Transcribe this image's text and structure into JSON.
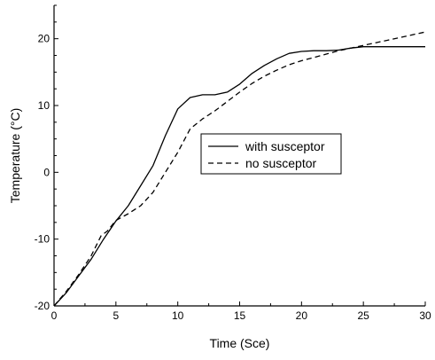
{
  "chart_data": {
    "type": "line",
    "title": "",
    "xlabel": "Time (Sce)",
    "ylabel": "Temperature (°C)",
    "xlim": [
      0,
      30
    ],
    "ylim": [
      -20,
      25
    ],
    "x_ticks": [
      0,
      5,
      10,
      15,
      20,
      25,
      30
    ],
    "y_ticks": [
      -20,
      -10,
      0,
      10,
      20
    ],
    "grid": false,
    "legend_position": "center-right",
    "series": [
      {
        "name": "with susceptor",
        "style": "solid",
        "color": "#000000",
        "points": [
          [
            0,
            -20
          ],
          [
            1,
            -18
          ],
          [
            2,
            -15.5
          ],
          [
            3,
            -13
          ],
          [
            4,
            -10
          ],
          [
            5,
            -7.3
          ],
          [
            6,
            -5
          ],
          [
            7,
            -2
          ],
          [
            8,
            1
          ],
          [
            9,
            5.5
          ],
          [
            10,
            9.5
          ],
          [
            11,
            11.2
          ],
          [
            12,
            11.6
          ],
          [
            13,
            11.6
          ],
          [
            14,
            12
          ],
          [
            15,
            13.2
          ],
          [
            16,
            14.8
          ],
          [
            17,
            16
          ],
          [
            18,
            17
          ],
          [
            19,
            17.8
          ],
          [
            20,
            18.1
          ],
          [
            21,
            18.2
          ],
          [
            22,
            18.2
          ],
          [
            23,
            18.3
          ],
          [
            24,
            18.6
          ],
          [
            25,
            18.8
          ],
          [
            26,
            18.8
          ],
          [
            27,
            18.8
          ],
          [
            28,
            18.8
          ],
          [
            29,
            18.8
          ],
          [
            30,
            18.8
          ]
        ]
      },
      {
        "name": "no susceptor",
        "style": "dashed",
        "color": "#000000",
        "points": [
          [
            0,
            -20
          ],
          [
            1,
            -17.8
          ],
          [
            2,
            -15.3
          ],
          [
            3,
            -12.5
          ],
          [
            3.8,
            -9.5
          ],
          [
            4.3,
            -8.8
          ],
          [
            5,
            -7.2
          ],
          [
            6,
            -6.2
          ],
          [
            7,
            -5
          ],
          [
            8,
            -3
          ],
          [
            9,
            0
          ],
          [
            10,
            3
          ],
          [
            11,
            6.5
          ],
          [
            12,
            8
          ],
          [
            13,
            9.2
          ],
          [
            14,
            10.6
          ],
          [
            15,
            12
          ],
          [
            16,
            13.3
          ],
          [
            17,
            14.4
          ],
          [
            18,
            15.3
          ],
          [
            19,
            16.1
          ],
          [
            20,
            16.7
          ],
          [
            21,
            17.2
          ],
          [
            22,
            17.7
          ],
          [
            23,
            18.2
          ],
          [
            24,
            18.6
          ],
          [
            25,
            19
          ],
          [
            26,
            19.4
          ],
          [
            27,
            19.8
          ],
          [
            28,
            20.2
          ],
          [
            29,
            20.6
          ],
          [
            30,
            21
          ]
        ]
      }
    ]
  }
}
